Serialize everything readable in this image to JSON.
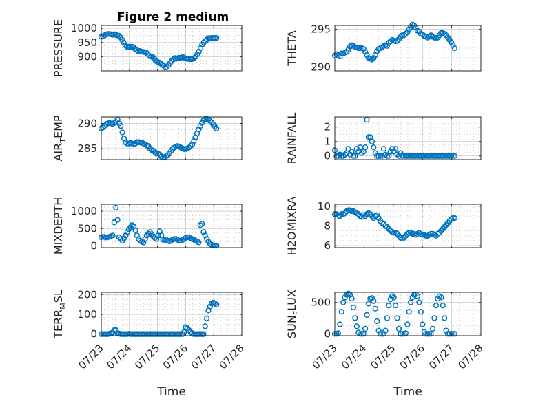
{
  "title": "Figure 2 medium",
  "colors": {
    "marker": "#0072BD",
    "axis": "#262626",
    "grid": "#c8c8c8",
    "minor_grid": "#b0b0b0"
  },
  "chart_data": [
    {
      "type": "scatter",
      "ylabel": {
        "main": "PRESSURE",
        "sub": "",
        "rest": ""
      },
      "ylim": [
        850,
        1010
      ],
      "yticks": [
        900,
        950,
        1000
      ],
      "xlim": [
        0,
        5
      ],
      "y": [
        970,
        972,
        975,
        978,
        980,
        980,
        979,
        977,
        979,
        977,
        975,
        974,
        968,
        960,
        950,
        940,
        935,
        935,
        935,
        935,
        934,
        928,
        924,
        920,
        920,
        918,
        917,
        916,
        915,
        910,
        902,
        900,
        900,
        895,
        885,
        882,
        880,
        876,
        872,
        868,
        862,
        863,
        870,
        878,
        885,
        890,
        895,
        893,
        895,
        896,
        897,
        898,
        895,
        893,
        892,
        892,
        891,
        892,
        895,
        900,
        908,
        918,
        930,
        942,
        950,
        955,
        960,
        965,
        965,
        966,
        966,
        966,
        966
      ]
    },
    {
      "type": "scatter",
      "ylabel": {
        "main": "THETA",
        "sub": "",
        "rest": ""
      },
      "ylim": [
        289.5,
        295.5
      ],
      "yticks": [
        290,
        295
      ],
      "xlim": [
        0,
        5
      ],
      "y": [
        291.5,
        291.7,
        291.6,
        291.4,
        291.8,
        291.8,
        291.9,
        292.0,
        292.3,
        292.7,
        292.9,
        292.8,
        292.6,
        292.6,
        292.5,
        292.5,
        292.5,
        292.4,
        292.0,
        291.6,
        291.2,
        291.1,
        291.0,
        291.2,
        291.6,
        292.1,
        292.4,
        292.5,
        292.6,
        292.8,
        292.9,
        292.8,
        293.2,
        293.4,
        293.6,
        293.5,
        293.4,
        293.5,
        293.7,
        294.0,
        294.2,
        294.2,
        294.4,
        294.6,
        295.0,
        295.3,
        295.6,
        295.5,
        295.2,
        294.8,
        294.7,
        294.4,
        294.3,
        294.1,
        294.0,
        293.9,
        294.0,
        294.2,
        294.0,
        293.9,
        293.8,
        293.9,
        294.2,
        294.5,
        294.5,
        294.4,
        294.2,
        293.9,
        293.6,
        293.3,
        292.9,
        292.5
      ]
    },
    {
      "type": "scatter",
      "ylabel": {
        "main": "AIR",
        "sub": "T",
        "rest": "EMP"
      },
      "ylim": [
        282.8,
        291.3
      ],
      "yticks": [
        285,
        290
      ],
      "xlim": [
        0,
        5
      ],
      "y": [
        289.0,
        289.2,
        289.5,
        289.8,
        290.0,
        290.1,
        290.0,
        289.9,
        290.1,
        290.3,
        290.8,
        290.0,
        289.5,
        288.2,
        287.0,
        286.2,
        286.0,
        286.0,
        286.1,
        286.0,
        285.8,
        286.0,
        286.3,
        286.3,
        286.2,
        286.2,
        286.0,
        285.8,
        285.6,
        285.5,
        285.0,
        284.7,
        284.6,
        284.3,
        284.0,
        284.0,
        283.8,
        283.4,
        283.2,
        283.3,
        283.5,
        283.7,
        284.0,
        284.5,
        285.0,
        285.2,
        285.4,
        285.5,
        285.4,
        285.2,
        285.0,
        284.9,
        284.9,
        285.0,
        285.2,
        285.5,
        285.8,
        286.5,
        287.2,
        288.0,
        288.8,
        289.5,
        290.1,
        290.6,
        290.9,
        290.9,
        290.8,
        290.5,
        290.2,
        289.8,
        289.4,
        289.0
      ]
    },
    {
      "type": "scatter",
      "ylabel": {
        "main": "RAINFALL",
        "sub": "",
        "rest": ""
      },
      "ylim": [
        -0.25,
        2.7
      ],
      "yticks": [
        0,
        1,
        2
      ],
      "xlim": [
        0,
        5
      ],
      "y": [
        0.4,
        0,
        0,
        0.1,
        0,
        0,
        0.1,
        0.2,
        0.5,
        0.1,
        0.3,
        0,
        0,
        0.5,
        0.3,
        0.6,
        0.2,
        0.3,
        0.6,
        2.5,
        1.3,
        1.3,
        1.0,
        0.6,
        0.2,
        0,
        0,
        0,
        0,
        0.5,
        0.1,
        0,
        0,
        0.3,
        0.5,
        0.3,
        0.5,
        0.1,
        0,
        0.2,
        0,
        0,
        0,
        0,
        0,
        0,
        0,
        0,
        0,
        0,
        0,
        0,
        0,
        0,
        0,
        0,
        0,
        0,
        0,
        0,
        0,
        0,
        0,
        0,
        0,
        0,
        0,
        0,
        0,
        0,
        0,
        0
      ]
    },
    {
      "type": "scatter",
      "ylabel": {
        "main": "MIXDEPTH",
        "sub": "",
        "rest": ""
      },
      "ylim": [
        -50,
        1200
      ],
      "yticks": [
        0,
        500,
        1000
      ],
      "xlim": [
        0,
        5
      ],
      "y": [
        250,
        260,
        260,
        240,
        250,
        260,
        280,
        300,
        680,
        1100,
        750,
        250,
        200,
        150,
        220,
        300,
        400,
        480,
        540,
        600,
        560,
        450,
        300,
        200,
        150,
        120,
        100,
        200,
        300,
        350,
        400,
        340,
        280,
        230,
        200,
        300,
        420,
        300,
        180,
        150,
        180,
        150,
        130,
        150,
        180,
        200,
        200,
        180,
        150,
        150,
        170,
        200,
        230,
        250,
        250,
        220,
        200,
        180,
        150,
        130,
        100,
        600,
        640,
        400,
        300,
        200,
        120,
        60,
        30,
        20,
        10,
        10
      ]
    },
    {
      "type": "scatter",
      "ylabel": {
        "main": "H2OMIXRA",
        "sub": "",
        "rest": ""
      },
      "ylim": [
        5.8,
        10.2
      ],
      "yticks": [
        6,
        8,
        10
      ],
      "xlim": [
        0,
        5
      ],
      "y": [
        9.2,
        9.2,
        9.1,
        9.0,
        9.2,
        9.2,
        9.3,
        9.5,
        9.6,
        9.6,
        9.5,
        9.5,
        9.4,
        9.3,
        9.2,
        9.0,
        8.9,
        9.1,
        9.0,
        9.2,
        9.3,
        9.2,
        9.0,
        8.8,
        9.0,
        9.1,
        8.8,
        8.5,
        8.3,
        8.2,
        8.0,
        7.9,
        7.7,
        7.5,
        7.4,
        7.3,
        7.3,
        7.2,
        7.0,
        6.8,
        6.7,
        6.8,
        7.0,
        7.2,
        7.3,
        7.3,
        7.2,
        7.2,
        7.1,
        7.2,
        7.3,
        7.2,
        7.1,
        7.1,
        7.0,
        7.0,
        7.1,
        7.2,
        7.2,
        7.1,
        7.0,
        7.2,
        7.3,
        7.5,
        7.7,
        7.9,
        8.1,
        8.3,
        8.5,
        8.7,
        8.8,
        8.8
      ]
    },
    {
      "type": "scatter",
      "ylabel": {
        "main": "TERR",
        "sub": "M",
        "rest": "SL"
      },
      "ylim": [
        -8,
        212
      ],
      "yticks": [
        0,
        100,
        200
      ],
      "xlim": [
        0,
        5
      ],
      "y": [
        0,
        0,
        0,
        0,
        0,
        2,
        5,
        8,
        20,
        20,
        5,
        3,
        0,
        0,
        0,
        0,
        0,
        2,
        0,
        0,
        0,
        0,
        0,
        0,
        0,
        0,
        0,
        0,
        0,
        0,
        0,
        0,
        0,
        0,
        0,
        0,
        0,
        0,
        0,
        0,
        0,
        0,
        0,
        0,
        0,
        0,
        0,
        0,
        0,
        0,
        0,
        10,
        35,
        30,
        20,
        10,
        5,
        0,
        0,
        0,
        0,
        0,
        0,
        0,
        40,
        80,
        120,
        140,
        155,
        160,
        155,
        150
      ]
    },
    {
      "type": "scatter",
      "ylabel": {
        "main": "SUN",
        "sub": "F",
        "rest": "LUX"
      },
      "ylim": [
        -30,
        660
      ],
      "yticks": [
        0,
        500
      ],
      "xlim": [
        0,
        5
      ],
      "y": [
        0,
        0,
        10,
        150,
        350,
        500,
        580,
        620,
        640,
        620,
        560,
        420,
        250,
        120,
        20,
        0,
        0,
        0,
        80,
        300,
        480,
        560,
        570,
        520,
        400,
        200,
        50,
        0,
        0,
        0,
        50,
        250,
        450,
        550,
        600,
        580,
        450,
        250,
        80,
        0,
        0,
        0,
        10,
        150,
        350,
        500,
        580,
        620,
        630,
        600,
        500,
        350,
        150,
        30,
        0,
        0,
        0,
        0,
        80,
        250,
        450,
        560,
        600,
        580,
        450,
        250,
        50,
        0,
        0,
        0,
        0,
        0
      ]
    }
  ],
  "xticks": [
    "07/23",
    "07/24",
    "07/25",
    "07/26",
    "07/27",
    "07/28"
  ],
  "xlabel": "Time"
}
